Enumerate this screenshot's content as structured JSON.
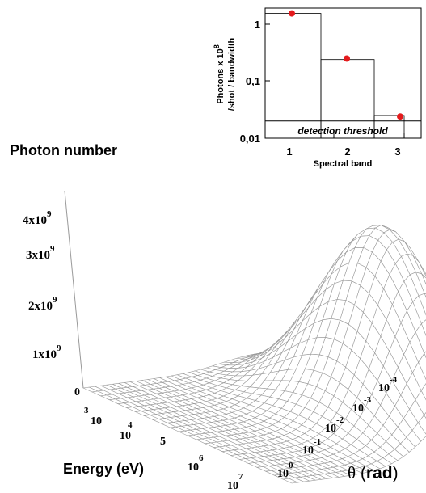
{
  "chart_data": [
    {
      "type": "bar",
      "x_label": "Spectral band",
      "y_label_line1": "Photons x 10",
      "y_label_exp": "8",
      "y_label_line2": "/shot / bandwidth",
      "y_scale": "log",
      "y_range": [
        0.01,
        2
      ],
      "y_ticks": [
        "1",
        "0,1",
        "0,01"
      ],
      "categories": [
        "1",
        "2",
        "3"
      ],
      "values": [
        1.55,
        0.24,
        0.025
      ],
      "markers": [
        1.55,
        0.25,
        0.024
      ],
      "threshold_value": 0.02,
      "threshold_label": "detection threshold",
      "marker_color": "#e41a1c"
    },
    {
      "type": "surface",
      "title": "Photon number",
      "z_ticks": [
        {
          "base": "0",
          "exp": ""
        },
        {
          "base": "1x10",
          "exp": "9"
        },
        {
          "base": "2x10",
          "exp": "9"
        },
        {
          "base": "3x10",
          "exp": "9"
        },
        {
          "base": "4x10",
          "exp": "9"
        }
      ],
      "energy_label": "Energy (eV)",
      "energy_ticks": [
        {
          "base": "10",
          "exp": "3"
        },
        {
          "base": "10",
          "exp": "4"
        },
        {
          "base": "",
          "exp": "5"
        },
        {
          "base": "10",
          "exp": "6"
        },
        {
          "base": "10",
          "exp": "7"
        }
      ],
      "theta_label_symbol": "θ",
      "theta_label_unit_open": " (",
      "theta_label_unit": "rad",
      "theta_label_unit_close": ")",
      "theta_ticks": [
        {
          "base": "10",
          "exp": "0"
        },
        {
          "base": "10",
          "exp": "-1"
        },
        {
          "base": "10",
          "exp": "-2"
        },
        {
          "base": "10",
          "exp": "-3"
        },
        {
          "base": "10",
          "exp": "-4"
        }
      ],
      "z_max": 4000000000.0,
      "grid_color": "#9a9a9a"
    }
  ]
}
